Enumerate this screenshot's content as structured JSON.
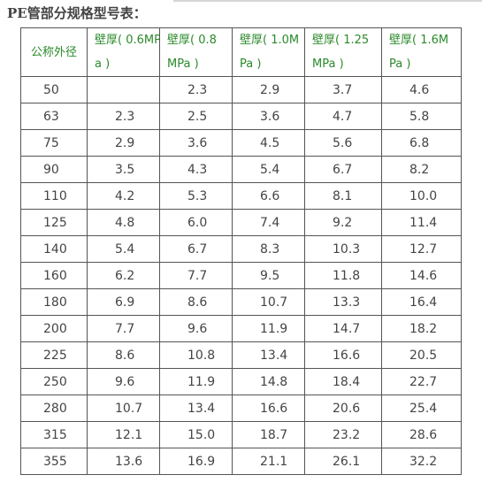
{
  "title": "PE管部分规格型号表：",
  "table": {
    "headers": [
      "公称外径",
      "壁厚( 0.6MP\na )",
      "壁厚( 0.8\nMPa )",
      "壁厚( 1.0M\nPa )",
      "壁厚( 1.25\nMPa )",
      "壁厚( 1.6M\nPa )"
    ],
    "rows": [
      [
        "50",
        "",
        "2.3",
        "2.9",
        "3.7",
        "4.6"
      ],
      [
        "63",
        "2.3",
        "2.5",
        "3.6",
        "4.7",
        "5.8"
      ],
      [
        "75",
        "2.9",
        "3.6",
        "4.5",
        "5.6",
        "6.8"
      ],
      [
        "90",
        "3.5",
        "4.3",
        "5.4",
        "6.7",
        "8.2"
      ],
      [
        "110",
        "4.2",
        "5.3",
        "6.6",
        "8.1",
        "10.0"
      ],
      [
        "125",
        "4.8",
        "6.0",
        "7.4",
        "9.2",
        "11.4"
      ],
      [
        "140",
        "5.4",
        "6.7",
        "8.3",
        "10.3",
        "12.7"
      ],
      [
        "160",
        "6.2",
        "7.7",
        "9.5",
        "11.8",
        "14.6"
      ],
      [
        "180",
        "6.9",
        "8.6",
        "10.7",
        "13.3",
        "16.4"
      ],
      [
        "200",
        "7.7",
        "9.6",
        "11.9",
        "14.7",
        "18.2"
      ],
      [
        "225",
        "8.6",
        "10.8",
        "13.4",
        "16.6",
        "20.5"
      ],
      [
        "250",
        "9.6",
        "11.9",
        "14.8",
        "18.4",
        "22.7"
      ],
      [
        "280",
        "10.7",
        "13.4",
        "16.6",
        "20.6",
        "25.4"
      ],
      [
        "315",
        "12.1",
        "15.0",
        "18.7",
        "23.2",
        "28.6"
      ],
      [
        "355",
        "13.6",
        "16.9",
        "21.1",
        "26.1",
        "32.2"
      ]
    ]
  },
  "colors": {
    "header_text": "#2b8a2b",
    "body_text": "#444444",
    "border": "#555555"
  }
}
